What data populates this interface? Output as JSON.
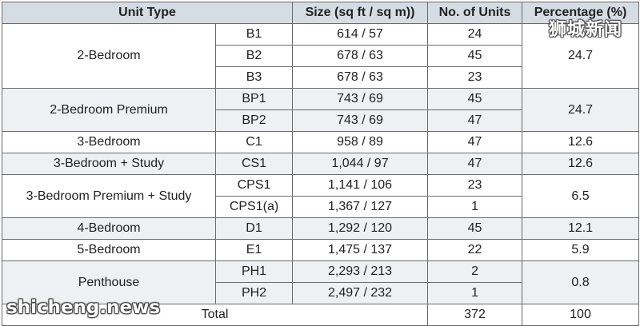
{
  "headers": {
    "unit_type": "Unit Type",
    "size": "Size (sq ft / sq m))",
    "units": "No. of Units",
    "percentage": "Percentage (%)"
  },
  "rows": [
    {
      "type": "2-Bedroom",
      "code": "B1",
      "size": "614 / 57",
      "units": "24",
      "pct": "24.7"
    },
    {
      "code": "B2",
      "size": "678 / 63",
      "units": "45"
    },
    {
      "code": "B3",
      "size": "678 / 63",
      "units": "23"
    },
    {
      "type": "2-Bedroom Premium",
      "code": "BP1",
      "size": "743 / 69",
      "units": "45",
      "pct": "24.7"
    },
    {
      "code": "BP2",
      "size": "743 / 69",
      "units": "47"
    },
    {
      "type": "3-Bedroom",
      "code": "C1",
      "size": "958 / 89",
      "units": "47",
      "pct": "12.6"
    },
    {
      "type": "3-Bedroom + Study",
      "code": "CS1",
      "size": "1,044 / 97",
      "units": "47",
      "pct": "12.6"
    },
    {
      "type": "3-Bedroom Premium + Study",
      "code": "CPS1",
      "size": "1,141 / 106",
      "units": "23",
      "pct": "6.5"
    },
    {
      "code": "CPS1(a)",
      "size": "1,367 / 127",
      "units": "1"
    },
    {
      "type": "4-Bedroom",
      "code": "D1",
      "size": "1,292 / 120",
      "units": "45",
      "pct": "12.1"
    },
    {
      "type": "5-Bedroom",
      "code": "E1",
      "size": "1,475 / 137",
      "units": "22",
      "pct": "5.9"
    },
    {
      "type": "Penthouse",
      "code": "PH1",
      "size": "2,293 / 213",
      "units": "2",
      "pct": "0.8"
    },
    {
      "code": "PH2",
      "size": "2,497 / 232",
      "units": "1"
    }
  ],
  "total": {
    "label": "Total",
    "units": "372",
    "pct": "100"
  },
  "watermarks": {
    "top": "狮城新闻",
    "bottom": "shicheng.news"
  },
  "colors": {
    "header_bg": "#d6dce4",
    "shaded_row_bg": "#eef0f3",
    "border": "#6b6b6b"
  }
}
